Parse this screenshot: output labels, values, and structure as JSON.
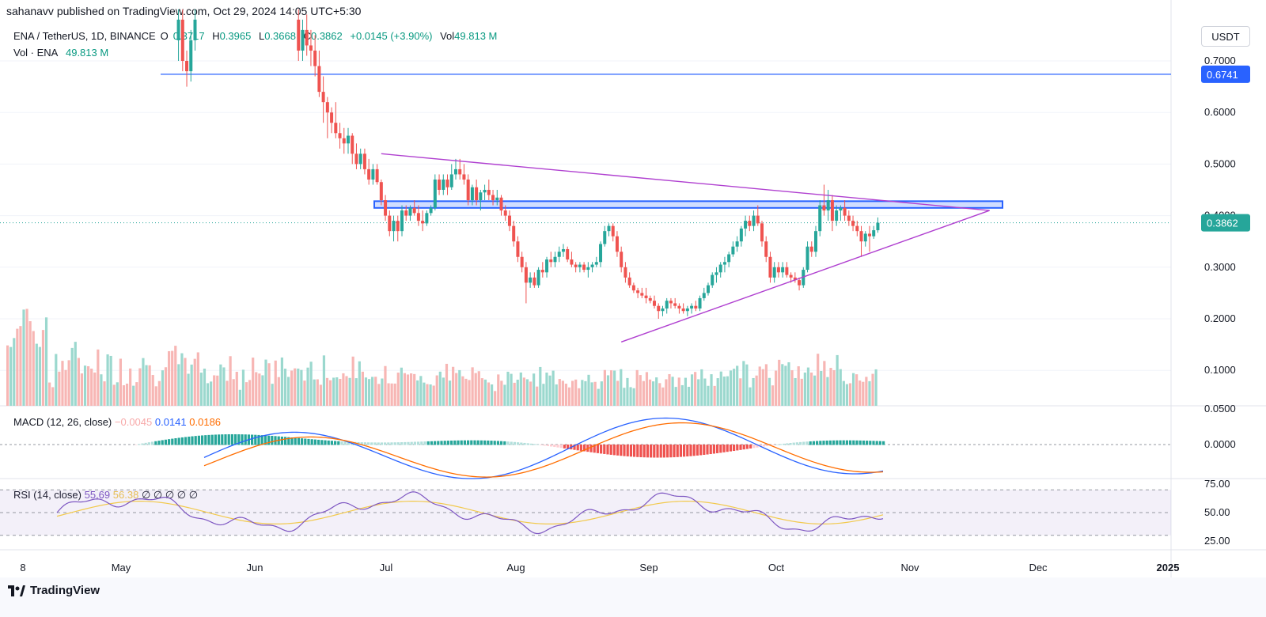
{
  "header": {
    "published_by": "sahanavv published on TradingView.com, Oct 29, 2024 14:05 UTC+5:30"
  },
  "legend": {
    "symbol": "ENA / TetherUS, 1D, BINANCE",
    "open_label": "O",
    "open_value": "0.3717",
    "high_label": "H",
    "high_value": "0.3965",
    "low_label": "L",
    "low_value": "0.3668",
    "close_label": "C",
    "close_value": "0.3862",
    "change": "+0.0145 (+3.90%)",
    "vol_label": "Vol",
    "vol_value": "49.813 M",
    "vol_line_label": "Vol · ENA",
    "vol_line_value": "49.813 M"
  },
  "macd_legend": {
    "label": "MACD (12, 26, close)",
    "hist": "−0.0045",
    "macd": "0.0141",
    "signal": "0.0186"
  },
  "rsi_legend": {
    "label": "RSI (14, close)",
    "rsi": "55.69",
    "ma": "56.38",
    "extras": "∅ ∅ ∅ ∅ ∅"
  },
  "currency": "USDT",
  "footer": {
    "brand": "TradingView"
  },
  "colors": {
    "up": "#26a69a",
    "down": "#ef5350",
    "accent": "#2962ff",
    "triangle": "#b040d0",
    "rsi": "#7e57c2",
    "rsi_ma": "#f2c94c",
    "macd": "#2962ff",
    "signal": "#ff6d00"
  },
  "chart_data": {
    "type": "candlestick",
    "symbol": "ENA / TetherUS",
    "interval": "1D",
    "exchange": "BINANCE",
    "x_ticks": [
      "8",
      "May",
      "Jun",
      "Jul",
      "Aug",
      "Sep",
      "Oct",
      "Nov",
      "Dec",
      "2025"
    ],
    "y_ticks": [
      "0.7000",
      "0.6000",
      "0.5000",
      "0.4000",
      "0.3000",
      "0.2000",
      "0.1000",
      "0.0500"
    ],
    "macd_ticks": [
      "0.0000"
    ],
    "rsi_ticks": [
      "75.00",
      "50.00",
      "25.00"
    ],
    "ylim": [
      0.05,
      0.75
    ],
    "last_price": "0.3862",
    "level_label": "0.6741",
    "horizontal_level": 0.6741,
    "resistance_zone": [
      0.415,
      0.428
    ],
    "trendlines": [
      {
        "name": "upper",
        "from": [
          "2024-07-01",
          0.52
        ],
        "to": [
          "2024-11-25",
          0.41
        ]
      },
      {
        "name": "lower",
        "from": [
          "2024-08-28",
          0.155
        ],
        "to": [
          "2024-11-25",
          0.41
        ]
      }
    ],
    "candles": [
      [
        "2024-05-13",
        0.74,
        0.8,
        0.7,
        0.78
      ],
      [
        "2024-05-14",
        0.78,
        0.8,
        0.68,
        0.7
      ],
      [
        "2024-05-15",
        0.7,
        0.72,
        0.65,
        0.68
      ],
      [
        "2024-05-16",
        0.68,
        0.76,
        0.66,
        0.74
      ],
      [
        "2024-05-17",
        0.74,
        0.8,
        0.72,
        0.78
      ],
      [
        "2024-06-11",
        0.78,
        0.8,
        0.7,
        0.72
      ],
      [
        "2024-06-12",
        0.72,
        0.78,
        0.7,
        0.76
      ],
      [
        "2024-06-13",
        0.76,
        0.79,
        0.71,
        0.73
      ],
      [
        "2024-06-14",
        0.73,
        0.76,
        0.69,
        0.72
      ],
      [
        "2024-06-15",
        0.72,
        0.75,
        0.67,
        0.69
      ],
      [
        "2024-06-16",
        0.69,
        0.72,
        0.63,
        0.64
      ],
      [
        "2024-06-17",
        0.64,
        0.67,
        0.58,
        0.62
      ],
      [
        "2024-06-18",
        0.62,
        0.63,
        0.55,
        0.6
      ],
      [
        "2024-06-19",
        0.6,
        0.61,
        0.56,
        0.58
      ],
      [
        "2024-06-20",
        0.58,
        0.62,
        0.55,
        0.56
      ],
      [
        "2024-06-21",
        0.56,
        0.58,
        0.53,
        0.55
      ],
      [
        "2024-06-22",
        0.55,
        0.57,
        0.52,
        0.54
      ],
      [
        "2024-06-23",
        0.54,
        0.57,
        0.52,
        0.555
      ],
      [
        "2024-06-24",
        0.555,
        0.56,
        0.5,
        0.52
      ],
      [
        "2024-06-25",
        0.52,
        0.54,
        0.49,
        0.5
      ],
      [
        "2024-06-26",
        0.5,
        0.53,
        0.49,
        0.52
      ],
      [
        "2024-06-27",
        0.52,
        0.53,
        0.48,
        0.49
      ],
      [
        "2024-06-28",
        0.49,
        0.51,
        0.46,
        0.47
      ],
      [
        "2024-06-29",
        0.47,
        0.5,
        0.46,
        0.49
      ],
      [
        "2024-06-30",
        0.49,
        0.5,
        0.46,
        0.465
      ],
      [
        "2024-07-01",
        0.465,
        0.47,
        0.42,
        0.43
      ],
      [
        "2024-07-02",
        0.43,
        0.44,
        0.39,
        0.4
      ],
      [
        "2024-07-03",
        0.4,
        0.41,
        0.36,
        0.37
      ],
      [
        "2024-07-04",
        0.37,
        0.4,
        0.35,
        0.39
      ],
      [
        "2024-07-05",
        0.39,
        0.4,
        0.35,
        0.37
      ],
      [
        "2024-07-06",
        0.37,
        0.42,
        0.36,
        0.41
      ],
      [
        "2024-07-07",
        0.41,
        0.42,
        0.39,
        0.4
      ],
      [
        "2024-07-08",
        0.4,
        0.42,
        0.39,
        0.415
      ],
      [
        "2024-07-09",
        0.415,
        0.43,
        0.4,
        0.405
      ],
      [
        "2024-07-10",
        0.405,
        0.42,
        0.38,
        0.39
      ],
      [
        "2024-07-11",
        0.39,
        0.41,
        0.37,
        0.385
      ],
      [
        "2024-07-12",
        0.385,
        0.41,
        0.38,
        0.405
      ],
      [
        "2024-07-13",
        0.405,
        0.42,
        0.4,
        0.415
      ],
      [
        "2024-07-14",
        0.415,
        0.48,
        0.41,
        0.47
      ],
      [
        "2024-07-15",
        0.47,
        0.48,
        0.44,
        0.45
      ],
      [
        "2024-07-16",
        0.45,
        0.48,
        0.44,
        0.47
      ],
      [
        "2024-07-17",
        0.47,
        0.48,
        0.44,
        0.455
      ],
      [
        "2024-07-18",
        0.455,
        0.5,
        0.45,
        0.48
      ],
      [
        "2024-07-19",
        0.48,
        0.51,
        0.47,
        0.49
      ],
      [
        "2024-07-20",
        0.49,
        0.51,
        0.47,
        0.48
      ],
      [
        "2024-07-21",
        0.48,
        0.5,
        0.46,
        0.47
      ],
      [
        "2024-07-22",
        0.47,
        0.48,
        0.42,
        0.43
      ],
      [
        "2024-07-23",
        0.43,
        0.46,
        0.42,
        0.455
      ],
      [
        "2024-07-24",
        0.455,
        0.47,
        0.42,
        0.43
      ],
      [
        "2024-07-25",
        0.43,
        0.45,
        0.41,
        0.445
      ],
      [
        "2024-07-26",
        0.445,
        0.46,
        0.43,
        0.45
      ],
      [
        "2024-07-27",
        0.45,
        0.47,
        0.43,
        0.44
      ],
      [
        "2024-07-28",
        0.44,
        0.45,
        0.42,
        0.43
      ],
      [
        "2024-07-29",
        0.43,
        0.45,
        0.42,
        0.435
      ],
      [
        "2024-07-30",
        0.435,
        0.44,
        0.4,
        0.41
      ],
      [
        "2024-07-31",
        0.41,
        0.42,
        0.39,
        0.4
      ],
      [
        "2024-08-01",
        0.4,
        0.41,
        0.37,
        0.38
      ],
      [
        "2024-08-02",
        0.38,
        0.39,
        0.34,
        0.35
      ],
      [
        "2024-08-03",
        0.35,
        0.36,
        0.31,
        0.32
      ],
      [
        "2024-08-04",
        0.32,
        0.33,
        0.29,
        0.3
      ],
      [
        "2024-08-05",
        0.3,
        0.31,
        0.23,
        0.27
      ],
      [
        "2024-08-06",
        0.27,
        0.29,
        0.26,
        0.28
      ],
      [
        "2024-08-07",
        0.28,
        0.29,
        0.26,
        0.265
      ],
      [
        "2024-08-08",
        0.265,
        0.3,
        0.26,
        0.295
      ],
      [
        "2024-08-09",
        0.295,
        0.31,
        0.28,
        0.29
      ],
      [
        "2024-08-10",
        0.29,
        0.32,
        0.28,
        0.315
      ],
      [
        "2024-08-11",
        0.315,
        0.33,
        0.3,
        0.31
      ],
      [
        "2024-08-12",
        0.31,
        0.33,
        0.3,
        0.32
      ],
      [
        "2024-08-13",
        0.32,
        0.34,
        0.31,
        0.33
      ],
      [
        "2024-08-14",
        0.33,
        0.345,
        0.32,
        0.335
      ],
      [
        "2024-08-15",
        0.335,
        0.34,
        0.31,
        0.315
      ],
      [
        "2024-08-16",
        0.315,
        0.33,
        0.3,
        0.305
      ],
      [
        "2024-08-17",
        0.305,
        0.31,
        0.29,
        0.3
      ],
      [
        "2024-08-18",
        0.3,
        0.31,
        0.29,
        0.305
      ],
      [
        "2024-08-19",
        0.305,
        0.31,
        0.29,
        0.295
      ],
      [
        "2024-08-20",
        0.295,
        0.31,
        0.28,
        0.3
      ],
      [
        "2024-08-21",
        0.3,
        0.31,
        0.29,
        0.305
      ],
      [
        "2024-08-22",
        0.305,
        0.32,
        0.3,
        0.31
      ],
      [
        "2024-08-23",
        0.31,
        0.35,
        0.3,
        0.345
      ],
      [
        "2024-08-24",
        0.345,
        0.38,
        0.34,
        0.37
      ],
      [
        "2024-08-25",
        0.37,
        0.385,
        0.36,
        0.38
      ],
      [
        "2024-08-26",
        0.38,
        0.385,
        0.35,
        0.36
      ],
      [
        "2024-08-27",
        0.36,
        0.37,
        0.32,
        0.33
      ],
      [
        "2024-08-28",
        0.33,
        0.34,
        0.29,
        0.3
      ],
      [
        "2024-08-29",
        0.3,
        0.31,
        0.27,
        0.28
      ],
      [
        "2024-08-30",
        0.28,
        0.29,
        0.26,
        0.265
      ],
      [
        "2024-08-31",
        0.265,
        0.27,
        0.25,
        0.255
      ],
      [
        "2024-09-01",
        0.255,
        0.26,
        0.24,
        0.25
      ],
      [
        "2024-09-02",
        0.25,
        0.26,
        0.24,
        0.245
      ],
      [
        "2024-09-03",
        0.245,
        0.26,
        0.23,
        0.24
      ],
      [
        "2024-09-04",
        0.24,
        0.245,
        0.23,
        0.235
      ],
      [
        "2024-09-05",
        0.235,
        0.245,
        0.22,
        0.225
      ],
      [
        "2024-09-06",
        0.225,
        0.23,
        0.2,
        0.215
      ],
      [
        "2024-09-07",
        0.215,
        0.225,
        0.205,
        0.22
      ],
      [
        "2024-09-08",
        0.22,
        0.24,
        0.21,
        0.235
      ],
      [
        "2024-09-09",
        0.235,
        0.24,
        0.22,
        0.23
      ],
      [
        "2024-09-10",
        0.23,
        0.24,
        0.22,
        0.225
      ],
      [
        "2024-09-11",
        0.225,
        0.23,
        0.21,
        0.22
      ],
      [
        "2024-09-12",
        0.22,
        0.23,
        0.21,
        0.215
      ],
      [
        "2024-09-13",
        0.215,
        0.225,
        0.205,
        0.22
      ],
      [
        "2024-09-14",
        0.22,
        0.23,
        0.21,
        0.225
      ],
      [
        "2024-09-15",
        0.225,
        0.235,
        0.215,
        0.22
      ],
      [
        "2024-09-16",
        0.22,
        0.245,
        0.215,
        0.24
      ],
      [
        "2024-09-17",
        0.24,
        0.26,
        0.235,
        0.25
      ],
      [
        "2024-09-18",
        0.25,
        0.27,
        0.245,
        0.265
      ],
      [
        "2024-09-19",
        0.265,
        0.29,
        0.26,
        0.285
      ],
      [
        "2024-09-20",
        0.285,
        0.3,
        0.27,
        0.29
      ],
      [
        "2024-09-21",
        0.29,
        0.31,
        0.28,
        0.305
      ],
      [
        "2024-09-22",
        0.305,
        0.32,
        0.29,
        0.31
      ],
      [
        "2024-09-23",
        0.31,
        0.33,
        0.3,
        0.325
      ],
      [
        "2024-09-24",
        0.325,
        0.35,
        0.32,
        0.34
      ],
      [
        "2024-09-25",
        0.34,
        0.36,
        0.33,
        0.35
      ],
      [
        "2024-09-26",
        0.35,
        0.38,
        0.34,
        0.375
      ],
      [
        "2024-09-27",
        0.375,
        0.4,
        0.36,
        0.39
      ],
      [
        "2024-09-28",
        0.39,
        0.4,
        0.37,
        0.38
      ],
      [
        "2024-09-29",
        0.38,
        0.41,
        0.37,
        0.4
      ],
      [
        "2024-09-30",
        0.4,
        0.42,
        0.38,
        0.385
      ],
      [
        "2024-10-01",
        0.385,
        0.39,
        0.34,
        0.35
      ],
      [
        "2024-10-02",
        0.35,
        0.36,
        0.31,
        0.32
      ],
      [
        "2024-10-03",
        0.32,
        0.33,
        0.27,
        0.28
      ],
      [
        "2024-10-04",
        0.28,
        0.31,
        0.27,
        0.3
      ],
      [
        "2024-10-05",
        0.3,
        0.31,
        0.28,
        0.29
      ],
      [
        "2024-10-06",
        0.29,
        0.31,
        0.28,
        0.3
      ],
      [
        "2024-10-07",
        0.3,
        0.31,
        0.28,
        0.285
      ],
      [
        "2024-10-08",
        0.285,
        0.29,
        0.27,
        0.28
      ],
      [
        "2024-10-09",
        0.28,
        0.29,
        0.27,
        0.275
      ],
      [
        "2024-10-10",
        0.275,
        0.28,
        0.255,
        0.265
      ],
      [
        "2024-10-11",
        0.265,
        0.3,
        0.26,
        0.295
      ],
      [
        "2024-10-12",
        0.295,
        0.35,
        0.29,
        0.34
      ],
      [
        "2024-10-13",
        0.34,
        0.35,
        0.32,
        0.33
      ],
      [
        "2024-10-14",
        0.33,
        0.38,
        0.32,
        0.37
      ],
      [
        "2024-10-15",
        0.37,
        0.43,
        0.36,
        0.42
      ],
      [
        "2024-10-16",
        0.42,
        0.46,
        0.4,
        0.41
      ],
      [
        "2024-10-17",
        0.41,
        0.45,
        0.39,
        0.43
      ],
      [
        "2024-10-18",
        0.43,
        0.44,
        0.37,
        0.39
      ],
      [
        "2024-10-19",
        0.39,
        0.42,
        0.38,
        0.41
      ],
      [
        "2024-10-20",
        0.41,
        0.42,
        0.39,
        0.415
      ],
      [
        "2024-10-21",
        0.415,
        0.43,
        0.39,
        0.4
      ],
      [
        "2024-10-22",
        0.4,
        0.41,
        0.38,
        0.39
      ],
      [
        "2024-10-23",
        0.39,
        0.4,
        0.37,
        0.38
      ],
      [
        "2024-10-24",
        0.38,
        0.39,
        0.36,
        0.37
      ],
      [
        "2024-10-25",
        0.37,
        0.38,
        0.32,
        0.35
      ],
      [
        "2024-10-26",
        0.35,
        0.37,
        0.34,
        0.365
      ],
      [
        "2024-10-27",
        0.365,
        0.38,
        0.33,
        0.36
      ],
      [
        "2024-10-28",
        0.36,
        0.38,
        0.355,
        0.3717
      ],
      [
        "2024-10-29",
        0.3717,
        0.3965,
        0.3668,
        0.3862
      ]
    ],
    "macd_series": {
      "macd_name": "MACD",
      "signal_name": "Signal",
      "last_macd": 0.0141,
      "last_signal": 0.0186,
      "last_hist": -0.0045
    },
    "rsi_series": {
      "last_rsi": 55.69,
      "last_ma": 56.38,
      "upper_band": 70,
      "lower_band": 30
    }
  }
}
